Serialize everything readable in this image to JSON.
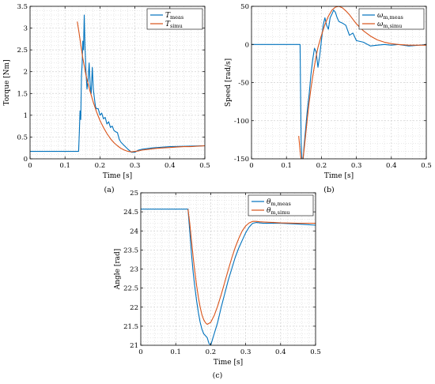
{
  "colors": {
    "measured": "#0072BD",
    "simulated": "#D95319",
    "grid": "#d0d0d0",
    "axis": "#000000"
  },
  "chart_data": [
    {
      "type": "line",
      "panel_label": "(a)",
      "xlabel": "Time [s]",
      "ylabel": "Torque [Nm]",
      "xlim": [
        0,
        0.5
      ],
      "ylim": [
        0,
        3.5
      ],
      "xticks": [
        0,
        0.1,
        0.2,
        0.3,
        0.4,
        0.5
      ],
      "yticks": [
        0,
        0.5,
        1,
        1.5,
        2,
        2.5,
        3,
        3.5
      ],
      "xtick_labels": [
        "0",
        "0.1",
        "0.2",
        "0.3",
        "0.4",
        "0.5"
      ],
      "ytick_labels": [
        "0",
        "0.5",
        "1",
        "1.5",
        "2",
        "2.5",
        "3",
        "3.5"
      ],
      "grid": true,
      "legend_position": "top-right",
      "series": [
        {
          "name": "T_meas",
          "name_main": "T",
          "name_sub": "meas",
          "color_key": "measured",
          "x": [
            0,
            0.05,
            0.1,
            0.139,
            0.141,
            0.143,
            0.145,
            0.147,
            0.149,
            0.151,
            0.153,
            0.155,
            0.157,
            0.16,
            0.163,
            0.166,
            0.169,
            0.172,
            0.175,
            0.178,
            0.181,
            0.184,
            0.187,
            0.19,
            0.195,
            0.2,
            0.205,
            0.21,
            0.215,
            0.22,
            0.225,
            0.23,
            0.235,
            0.24,
            0.245,
            0.25,
            0.255,
            0.26,
            0.27,
            0.28,
            0.29,
            0.3,
            0.31,
            0.32,
            0.35,
            0.4,
            0.45,
            0.5
          ],
          "y": [
            0.17,
            0.17,
            0.17,
            0.17,
            0.6,
            1.1,
            0.9,
            1.9,
            2.2,
            2.7,
            2.5,
            3.3,
            2.6,
            2.0,
            1.6,
            1.8,
            2.2,
            1.7,
            1.5,
            2.1,
            1.6,
            1.4,
            1.2,
            1.15,
            1.15,
            1.0,
            1.05,
            0.92,
            0.95,
            0.8,
            0.85,
            0.72,
            0.75,
            0.65,
            0.62,
            0.6,
            0.45,
            0.38,
            0.3,
            0.22,
            0.15,
            0.15,
            0.2,
            0.22,
            0.25,
            0.28,
            0.29,
            0.3
          ]
        },
        {
          "name": "T_simu",
          "name_main": "T",
          "name_sub": "simu",
          "color_key": "simulated",
          "x": [
            0.135,
            0.14,
            0.15,
            0.16,
            0.17,
            0.18,
            0.19,
            0.2,
            0.21,
            0.22,
            0.23,
            0.24,
            0.25,
            0.26,
            0.27,
            0.28,
            0.29,
            0.3,
            0.31,
            0.32,
            0.34,
            0.36,
            0.38,
            0.4,
            0.42,
            0.44,
            0.46,
            0.48,
            0.5
          ],
          "y": [
            3.15,
            2.9,
            2.35,
            1.92,
            1.6,
            1.32,
            1.08,
            0.88,
            0.72,
            0.58,
            0.46,
            0.37,
            0.3,
            0.24,
            0.2,
            0.17,
            0.16,
            0.17,
            0.18,
            0.2,
            0.22,
            0.24,
            0.25,
            0.26,
            0.27,
            0.28,
            0.28,
            0.29,
            0.3
          ]
        }
      ]
    },
    {
      "type": "line",
      "panel_label": "(b)",
      "xlabel": "Time [s]",
      "ylabel": "Speed [rad/s]",
      "xlim": [
        0,
        0.5
      ],
      "ylim": [
        -150,
        50
      ],
      "xticks": [
        0,
        0.1,
        0.2,
        0.3,
        0.4,
        0.5
      ],
      "yticks": [
        -150,
        -100,
        -50,
        0,
        50
      ],
      "xtick_labels": [
        "0",
        "0.1",
        "0.2",
        "0.3",
        "0.4",
        "0.5"
      ],
      "ytick_labels": [
        "-150",
        "-100",
        "-50",
        "0",
        "50"
      ],
      "grid": true,
      "legend_position": "top-right",
      "series": [
        {
          "name": "ω_m,meas",
          "name_main": "ω",
          "name_sub": "m,meas",
          "color_key": "measured",
          "x": [
            0,
            0.05,
            0.1,
            0.139,
            0.14,
            0.142,
            0.145,
            0.148,
            0.15,
            0.155,
            0.16,
            0.165,
            0.17,
            0.175,
            0.18,
            0.185,
            0.19,
            0.195,
            0.2,
            0.205,
            0.21,
            0.215,
            0.22,
            0.225,
            0.23,
            0.235,
            0.24,
            0.245,
            0.25,
            0.26,
            0.27,
            0.28,
            0.29,
            0.3,
            0.32,
            0.34,
            0.36,
            0.38,
            0.4,
            0.42,
            0.45,
            0.48,
            0.5
          ],
          "y": [
            0,
            0,
            0,
            0,
            -50,
            -130,
            -155,
            -150,
            -135,
            -110,
            -85,
            -65,
            -40,
            -20,
            -5,
            -10,
            -30,
            -15,
            5,
            25,
            35,
            25,
            20,
            35,
            40,
            45,
            42,
            35,
            30,
            28,
            25,
            12,
            15,
            5,
            3,
            -2,
            -1,
            0,
            -1,
            0,
            -2,
            -1,
            0
          ]
        },
        {
          "name": "ω_m,simu",
          "name_main": "ω",
          "name_sub": "m,simu",
          "color_key": "simulated",
          "x": [
            0.135,
            0.14,
            0.145,
            0.15,
            0.155,
            0.16,
            0.165,
            0.17,
            0.175,
            0.18,
            0.185,
            0.19,
            0.2,
            0.21,
            0.22,
            0.23,
            0.24,
            0.25,
            0.26,
            0.27,
            0.28,
            0.29,
            0.3,
            0.32,
            0.34,
            0.36,
            0.38,
            0.4,
            0.42,
            0.45,
            0.48,
            0.5
          ],
          "y": [
            -120,
            -145,
            -158,
            -140,
            -118,
            -96,
            -76,
            -58,
            -42,
            -28,
            -15,
            -4,
            12,
            26,
            37,
            45,
            49,
            50,
            48,
            44,
            39,
            33,
            27,
            18,
            11,
            6,
            3,
            1,
            0,
            -1,
            -1,
            -1
          ]
        }
      ]
    },
    {
      "type": "line",
      "panel_label": "(c)",
      "xlabel": "Time [s]",
      "ylabel": "Angle [rad]",
      "xlim": [
        0,
        0.5
      ],
      "ylim": [
        21,
        25
      ],
      "xticks": [
        0,
        0.1,
        0.2,
        0.3,
        0.4,
        0.5
      ],
      "yticks": [
        21,
        21.5,
        22,
        22.5,
        23,
        23.5,
        24,
        24.5,
        25
      ],
      "xtick_labels": [
        "0",
        "0.1",
        "0.2",
        "0.3",
        "0.4",
        "0.5"
      ],
      "ytick_labels": [
        "21",
        "21.5",
        "22",
        "22.5",
        "23",
        "23.5",
        "24",
        "24.5",
        "25"
      ],
      "grid": true,
      "legend_position": "top-right",
      "series": [
        {
          "name": "θ_m,meas",
          "name_main": "θ",
          "name_sub": "m,meas",
          "color_key": "measured",
          "x": [
            0,
            0.05,
            0.1,
            0.135,
            0.14,
            0.145,
            0.15,
            0.155,
            0.16,
            0.165,
            0.17,
            0.175,
            0.18,
            0.185,
            0.19,
            0.195,
            0.2,
            0.205,
            0.21,
            0.215,
            0.22,
            0.23,
            0.24,
            0.25,
            0.26,
            0.27,
            0.28,
            0.29,
            0.3,
            0.31,
            0.32,
            0.33,
            0.35,
            0.4,
            0.45,
            0.5
          ],
          "y": [
            24.57,
            24.57,
            24.57,
            24.57,
            24.0,
            23.4,
            22.9,
            22.5,
            22.15,
            21.85,
            21.6,
            21.42,
            21.3,
            21.25,
            21.2,
            21.05,
            21.0,
            21.15,
            21.3,
            21.45,
            21.6,
            22.0,
            22.35,
            22.7,
            23.0,
            23.3,
            23.55,
            23.75,
            23.95,
            24.1,
            24.2,
            24.22,
            24.2,
            24.2,
            24.18,
            24.15
          ]
        },
        {
          "name": "θ_m,simu",
          "name_main": "θ",
          "name_sub": "m,simu",
          "color_key": "simulated",
          "x": [
            0.135,
            0.14,
            0.145,
            0.15,
            0.155,
            0.16,
            0.165,
            0.17,
            0.175,
            0.18,
            0.185,
            0.19,
            0.2,
            0.21,
            0.22,
            0.23,
            0.24,
            0.25,
            0.26,
            0.27,
            0.28,
            0.29,
            0.3,
            0.31,
            0.32,
            0.33,
            0.34,
            0.36,
            0.38,
            0.4,
            0.45,
            0.5
          ],
          "y": [
            24.57,
            24.2,
            23.75,
            23.3,
            22.9,
            22.55,
            22.25,
            22.0,
            21.8,
            21.67,
            21.59,
            21.55,
            21.6,
            21.78,
            22.03,
            22.33,
            22.65,
            22.97,
            23.28,
            23.56,
            23.8,
            24.0,
            24.13,
            24.21,
            24.25,
            24.25,
            24.24,
            24.23,
            24.22,
            24.21,
            24.2,
            24.2
          ]
        }
      ]
    }
  ]
}
